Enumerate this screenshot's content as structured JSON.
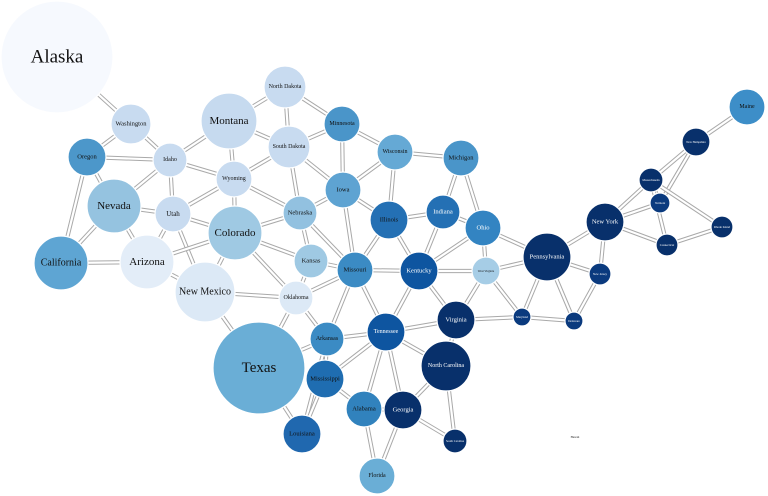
{
  "diagram": {
    "colors": {
      "edge_outline": "#a9a9a9",
      "edge_fill": "#ffffff",
      "label_dark": "#111111",
      "label_light": "#ffffff"
    },
    "nodes": [
      {
        "id": "alaska",
        "label": "Alaska",
        "color": "#f6f9fe",
        "text": "dark"
      },
      {
        "id": "washington",
        "label": "Washington",
        "color": "#c8dbf0",
        "text": "dark"
      },
      {
        "id": "oregon",
        "label": "Oregon",
        "color": "#4c97ca",
        "text": "dark"
      },
      {
        "id": "idaho",
        "label": "Idaho",
        "color": "#c8dbf0",
        "text": "dark"
      },
      {
        "id": "montana",
        "label": "Montana",
        "color": "#c6daef",
        "text": "dark"
      },
      {
        "id": "north-dakota",
        "label": "North Dakota",
        "color": "#c8dbf0",
        "text": "dark"
      },
      {
        "id": "south-dakota",
        "label": "South Dakota",
        "color": "#c8dbf0",
        "text": "dark"
      },
      {
        "id": "minnesota",
        "label": "Minnesota",
        "color": "#4a95c9",
        "text": "dark"
      },
      {
        "id": "wisconsin",
        "label": "Wisconsin",
        "color": "#65a9d5",
        "text": "dark"
      },
      {
        "id": "michigan",
        "label": "Michigan",
        "color": "#4a95c9",
        "text": "dark"
      },
      {
        "id": "nevada",
        "label": "Nevada",
        "color": "#95c3e0",
        "text": "dark"
      },
      {
        "id": "utah",
        "label": "Utah",
        "color": "#c8dbf0",
        "text": "dark"
      },
      {
        "id": "wyoming",
        "label": "Wyoming",
        "color": "#c8dbf0",
        "text": "dark"
      },
      {
        "id": "nebraska",
        "label": "Nebraska",
        "color": "#92c1e0",
        "text": "dark"
      },
      {
        "id": "iowa",
        "label": "Iowa",
        "color": "#5ea3d2",
        "text": "dark"
      },
      {
        "id": "illinois",
        "label": "Illinois",
        "color": "#2470b4",
        "text": "dark"
      },
      {
        "id": "indiana",
        "label": "Indiana",
        "color": "#2470b4",
        "text": "light"
      },
      {
        "id": "ohio",
        "label": "Ohio",
        "color": "#3384c2",
        "text": "light"
      },
      {
        "id": "california",
        "label": "California",
        "color": "#5ea5d3",
        "text": "dark"
      },
      {
        "id": "arizona",
        "label": "Arizona",
        "color": "#e3edf8",
        "text": "dark"
      },
      {
        "id": "colorado",
        "label": "Colorado",
        "color": "#9fc9e3",
        "text": "dark"
      },
      {
        "id": "kansas",
        "label": "Kansas",
        "color": "#9fc9e3",
        "text": "dark"
      },
      {
        "id": "missouri",
        "label": "Missouri",
        "color": "#3b8bc4",
        "text": "dark"
      },
      {
        "id": "kentucky",
        "label": "Kentucky",
        "color": "#0e55a0",
        "text": "light"
      },
      {
        "id": "west-virginia",
        "label": "West Virginia",
        "color": "#a6cde6",
        "text": "dark"
      },
      {
        "id": "pennsylvania",
        "label": "Pennsylvania",
        "color": "#08306b",
        "text": "light"
      },
      {
        "id": "new-york",
        "label": "New York",
        "color": "#08306b",
        "text": "light"
      },
      {
        "id": "new-mexico",
        "label": "New Mexico",
        "color": "#dce9f6",
        "text": "dark"
      },
      {
        "id": "oklahoma",
        "label": "Oklahoma",
        "color": "#dce9f6",
        "text": "dark"
      },
      {
        "id": "arkansas",
        "label": "Arkansas",
        "color": "#3b8bc4",
        "text": "dark"
      },
      {
        "id": "tennessee",
        "label": "Tennessee",
        "color": "#0e55a0",
        "text": "light"
      },
      {
        "id": "virginia",
        "label": "Virginia",
        "color": "#08306b",
        "text": "light"
      },
      {
        "id": "maryland",
        "label": "Maryland",
        "color": "#0a3a7e",
        "text": "light"
      },
      {
        "id": "delaware",
        "label": "Delaware",
        "color": "#0a3a7e",
        "text": "light"
      },
      {
        "id": "new-jersey",
        "label": "New Jersey",
        "color": "#0a3a7e",
        "text": "light"
      },
      {
        "id": "texas",
        "label": "Texas",
        "color": "#6aaed6",
        "text": "dark"
      },
      {
        "id": "mississippi",
        "label": "Mississippi",
        "color": "#1f6db1",
        "text": "dark"
      },
      {
        "id": "louisiana",
        "label": "Louisiana",
        "color": "#2068af",
        "text": "dark"
      },
      {
        "id": "alabama",
        "label": "Alabama",
        "color": "#3182bd",
        "text": "dark"
      },
      {
        "id": "georgia",
        "label": "Georgia",
        "color": "#08306b",
        "text": "light"
      },
      {
        "id": "north-carolina",
        "label": "North Carolina",
        "color": "#08306b",
        "text": "light"
      },
      {
        "id": "south-carolina",
        "label": "South Carolina",
        "color": "#08306b",
        "text": "light"
      },
      {
        "id": "florida",
        "label": "Florida",
        "color": "#6aaed6",
        "text": "dark"
      },
      {
        "id": "hawaii",
        "label": "Hawaii",
        "color": "#ffffff",
        "text": "dark"
      },
      {
        "id": "maine",
        "label": "Maine",
        "color": "#3d8ec8",
        "text": "dark"
      },
      {
        "id": "new-hampshire",
        "label": "New Hampshire",
        "color": "#08306b",
        "text": "light"
      },
      {
        "id": "massachusetts",
        "label": "Massachusetts",
        "color": "#08306b",
        "text": "light"
      },
      {
        "id": "vermont",
        "label": "Vermont",
        "color": "#0a3a7e",
        "text": "light"
      },
      {
        "id": "connecticut",
        "label": "Connecticut",
        "color": "#08306b",
        "text": "light"
      },
      {
        "id": "rhode-island",
        "label": "Rhode Island",
        "color": "#08306b",
        "text": "light"
      }
    ],
    "edges": [
      [
        "alaska",
        "washington"
      ],
      [
        "washington",
        "oregon"
      ],
      [
        "washington",
        "idaho"
      ],
      [
        "oregon",
        "idaho"
      ],
      [
        "oregon",
        "nevada"
      ],
      [
        "oregon",
        "california"
      ],
      [
        "idaho",
        "montana"
      ],
      [
        "idaho",
        "wyoming"
      ],
      [
        "idaho",
        "utah"
      ],
      [
        "idaho",
        "nevada"
      ],
      [
        "montana",
        "north-dakota"
      ],
      [
        "montana",
        "south-dakota"
      ],
      [
        "montana",
        "wyoming"
      ],
      [
        "north-dakota",
        "minnesota"
      ],
      [
        "north-dakota",
        "south-dakota"
      ],
      [
        "south-dakota",
        "minnesota"
      ],
      [
        "south-dakota",
        "iowa"
      ],
      [
        "south-dakota",
        "nebraska"
      ],
      [
        "south-dakota",
        "wyoming"
      ],
      [
        "minnesota",
        "wisconsin"
      ],
      [
        "minnesota",
        "iowa"
      ],
      [
        "wisconsin",
        "michigan"
      ],
      [
        "wisconsin",
        "illinois"
      ],
      [
        "wisconsin",
        "iowa"
      ],
      [
        "michigan",
        "indiana"
      ],
      [
        "michigan",
        "ohio"
      ],
      [
        "nevada",
        "utah"
      ],
      [
        "nevada",
        "arizona"
      ],
      [
        "nevada",
        "california"
      ],
      [
        "california",
        "arizona"
      ],
      [
        "utah",
        "wyoming"
      ],
      [
        "utah",
        "colorado"
      ],
      [
        "utah",
        "arizona"
      ],
      [
        "utah",
        "new-mexico"
      ],
      [
        "wyoming",
        "colorado"
      ],
      [
        "wyoming",
        "nebraska"
      ],
      [
        "colorado",
        "nebraska"
      ],
      [
        "colorado",
        "kansas"
      ],
      [
        "colorado",
        "oklahoma"
      ],
      [
        "colorado",
        "new-mexico"
      ],
      [
        "colorado",
        "arizona"
      ],
      [
        "arizona",
        "new-mexico"
      ],
      [
        "nebraska",
        "iowa"
      ],
      [
        "nebraska",
        "kansas"
      ],
      [
        "nebraska",
        "missouri"
      ],
      [
        "kansas",
        "missouri"
      ],
      [
        "kansas",
        "oklahoma"
      ],
      [
        "iowa",
        "illinois"
      ],
      [
        "iowa",
        "missouri"
      ],
      [
        "illinois",
        "indiana"
      ],
      [
        "illinois",
        "kentucky"
      ],
      [
        "illinois",
        "missouri"
      ],
      [
        "indiana",
        "ohio"
      ],
      [
        "indiana",
        "kentucky"
      ],
      [
        "ohio",
        "pennsylvania"
      ],
      [
        "ohio",
        "west-virginia"
      ],
      [
        "ohio",
        "kentucky"
      ],
      [
        "missouri",
        "kentucky"
      ],
      [
        "missouri",
        "tennessee"
      ],
      [
        "missouri",
        "arkansas"
      ],
      [
        "missouri",
        "oklahoma"
      ],
      [
        "new-mexico",
        "oklahoma"
      ],
      [
        "new-mexico",
        "texas"
      ],
      [
        "oklahoma",
        "texas"
      ],
      [
        "oklahoma",
        "arkansas"
      ],
      [
        "kentucky",
        "tennessee"
      ],
      [
        "kentucky",
        "virginia"
      ],
      [
        "kentucky",
        "west-virginia"
      ],
      [
        "west-virginia",
        "virginia"
      ],
      [
        "west-virginia",
        "pennsylvania"
      ],
      [
        "west-virginia",
        "maryland"
      ],
      [
        "pennsylvania",
        "new-york"
      ],
      [
        "pennsylvania",
        "new-jersey"
      ],
      [
        "pennsylvania",
        "delaware"
      ],
      [
        "pennsylvania",
        "maryland"
      ],
      [
        "maryland",
        "virginia"
      ],
      [
        "maryland",
        "delaware"
      ],
      [
        "delaware",
        "new-jersey"
      ],
      [
        "new-jersey",
        "new-york"
      ],
      [
        "new-york",
        "vermont"
      ],
      [
        "new-york",
        "massachusetts"
      ],
      [
        "new-york",
        "connecticut"
      ],
      [
        "arkansas",
        "texas"
      ],
      [
        "arkansas",
        "louisiana"
      ],
      [
        "arkansas",
        "mississippi"
      ],
      [
        "arkansas",
        "tennessee"
      ],
      [
        "tennessee",
        "mississippi"
      ],
      [
        "tennessee",
        "alabama"
      ],
      [
        "tennessee",
        "georgia"
      ],
      [
        "tennessee",
        "north-carolina"
      ],
      [
        "tennessee",
        "virginia"
      ],
      [
        "virginia",
        "north-carolina"
      ],
      [
        "north-carolina",
        "georgia"
      ],
      [
        "north-carolina",
        "south-carolina"
      ],
      [
        "georgia",
        "south-carolina"
      ],
      [
        "georgia",
        "alabama"
      ],
      [
        "georgia",
        "florida"
      ],
      [
        "alabama",
        "florida"
      ],
      [
        "alabama",
        "mississippi"
      ],
      [
        "mississippi",
        "louisiana"
      ],
      [
        "texas",
        "louisiana"
      ],
      [
        "maine",
        "new-hampshire"
      ],
      [
        "new-hampshire",
        "vermont"
      ],
      [
        "new-hampshire",
        "massachusetts"
      ],
      [
        "massachusetts",
        "vermont"
      ],
      [
        "massachusetts",
        "rhode-island"
      ],
      [
        "massachusetts",
        "connecticut"
      ],
      [
        "connecticut",
        "rhode-island"
      ]
    ]
  }
}
